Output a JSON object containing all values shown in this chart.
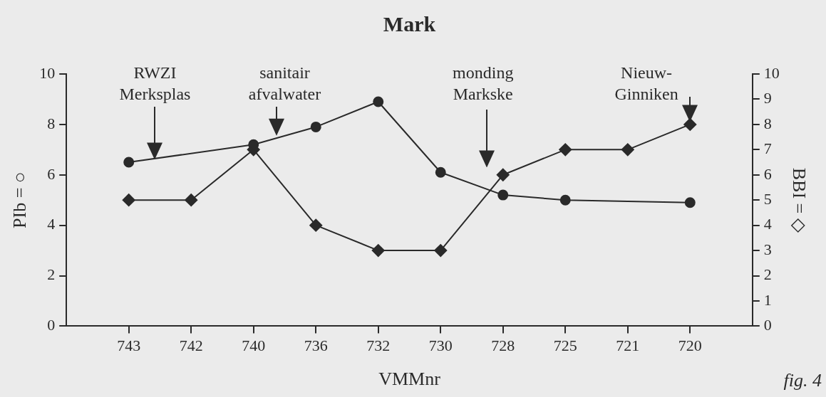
{
  "chart_data": {
    "type": "line",
    "title": "Mark",
    "xlabel": "VMMnr",
    "ylabel": "PIb = ○",
    "y2label": "BBI = ◇",
    "categories": [
      "743",
      "742",
      "740",
      "736",
      "732",
      "730",
      "728",
      "725",
      "721",
      "720"
    ],
    "series": [
      {
        "color": "#2a2a2a",
        "marker": "circle",
        "values": [
          6.5,
          null,
          7.2,
          7.9,
          8.9,
          6.1,
          5.2,
          5.0,
          null,
          4.9
        ]
      },
      {
        "color": "#2a2a2a",
        "marker": "diamond",
        "axis": "y2",
        "values": [
          5,
          5,
          7,
          4,
          3,
          3,
          6,
          7,
          7,
          8
        ]
      }
    ],
    "ylim": [
      0,
      10
    ],
    "yticks": [
      0,
      2,
      4,
      6,
      8,
      10
    ],
    "y2lim": [
      0,
      10
    ],
    "y2ticks": [
      0,
      1,
      2,
      3,
      4,
      5,
      6,
      7,
      8,
      9,
      10
    ],
    "grid": false,
    "legend": false,
    "annotations": [
      "RWZI\nMerksplas",
      "sanitair\nafvalwater",
      "monding\nMarkske",
      "Nieuw-\nGinniken",
      "fig. 4"
    ]
  }
}
